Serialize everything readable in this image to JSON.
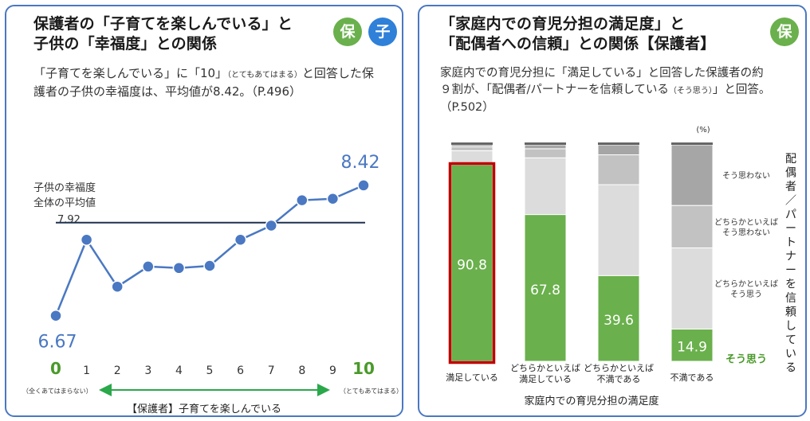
{
  "left_panel": {
    "title_line1": "保護者の「子育てを楽しんでいる」と",
    "title_line2": "子供の「幸福度」との関係",
    "badges": [
      "保",
      "子"
    ],
    "desc_line1_a": "「子育てを楽しんでいる」に「10」",
    "desc_line1_small": "（とてもあてはまる）",
    "desc_line1_b": "と回答した保",
    "desc_line2": "護者の子供の幸福度は、平均値が8.42。（P.496）"
  },
  "right_panel": {
    "title_line1": "「家庭内での育児分担の満足度」と",
    "title_line2": "「配偶者への信頼」との関係【保護者】",
    "badges": [
      "保"
    ],
    "desc_line1": "家庭内での育児分担に「満足している」と回答した保護者の約",
    "desc_line2_a": "９割が、「配偶者/パートナーを信頼している",
    "desc_line2_small": "（そう思う）",
    "desc_line2_b": "」と回答。",
    "desc_line3": "（P.502）"
  },
  "colors": {
    "border": "#4a78c2",
    "line": "#4a78c2",
    "green": "#6ab04c",
    "blue": "#2f80d8",
    "avg_line": "#1f3050",
    "highlight": "#c00000"
  },
  "chart_data": [
    {
      "type": "line",
      "title": "",
      "x": [
        0,
        1,
        2,
        3,
        4,
        5,
        6,
        7,
        8,
        9,
        10
      ],
      "y": [
        6.67,
        7.69,
        7.06,
        7.33,
        7.31,
        7.34,
        7.69,
        7.88,
        8.22,
        8.24,
        8.42
      ],
      "first_label": "6.67",
      "last_label": "8.42",
      "ylim": [
        6.4,
        8.75
      ],
      "average": {
        "value": 7.92,
        "label_line1": "子供の幸福度",
        "label_line2": "全体の平均値",
        "value_label": "7.92"
      },
      "x_tick_labels": [
        "0",
        "1",
        "2",
        "3",
        "4",
        "5",
        "6",
        "7",
        "8",
        "9",
        "10"
      ],
      "x_min_note": "（全くあてはまらない）",
      "x_max_note": "（とてもあてはまる）",
      "xlabel": "【保護者】子育てを楽しんでいる"
    },
    {
      "type": "bar",
      "stacked": true,
      "percent_unit": "(%)",
      "categories": [
        "満足している",
        "どちらかといえば\n満足している",
        "どちらかといえば\n不満である",
        "不満である"
      ],
      "series": [
        {
          "name": "そう思う",
          "values": [
            90.8,
            67.8,
            39.6,
            14.9
          ],
          "color": "#6ab04c"
        },
        {
          "name": "どちらかといえば\nそう思う",
          "values": [
            6.5,
            26.2,
            42.0,
            37.5
          ],
          "color": "#dcdcdc"
        },
        {
          "name": "どちらかといえば\nそう思わない",
          "values": [
            1.8,
            4.2,
            13.8,
            19.6
          ],
          "color": "#c2c2c2"
        },
        {
          "name": "そう思わない",
          "values": [
            0.9,
            1.8,
            4.6,
            28.0
          ],
          "color": "#a6a6a6"
        }
      ],
      "value_labels": [
        "90.8",
        "67.8",
        "39.6",
        "14.9"
      ],
      "highlight_category": "満足している",
      "xlabel": "家庭内での育児分担の満足度",
      "ylabel": "配偶者／パートナーを信頼している",
      "ylim": [
        0,
        100
      ]
    }
  ]
}
